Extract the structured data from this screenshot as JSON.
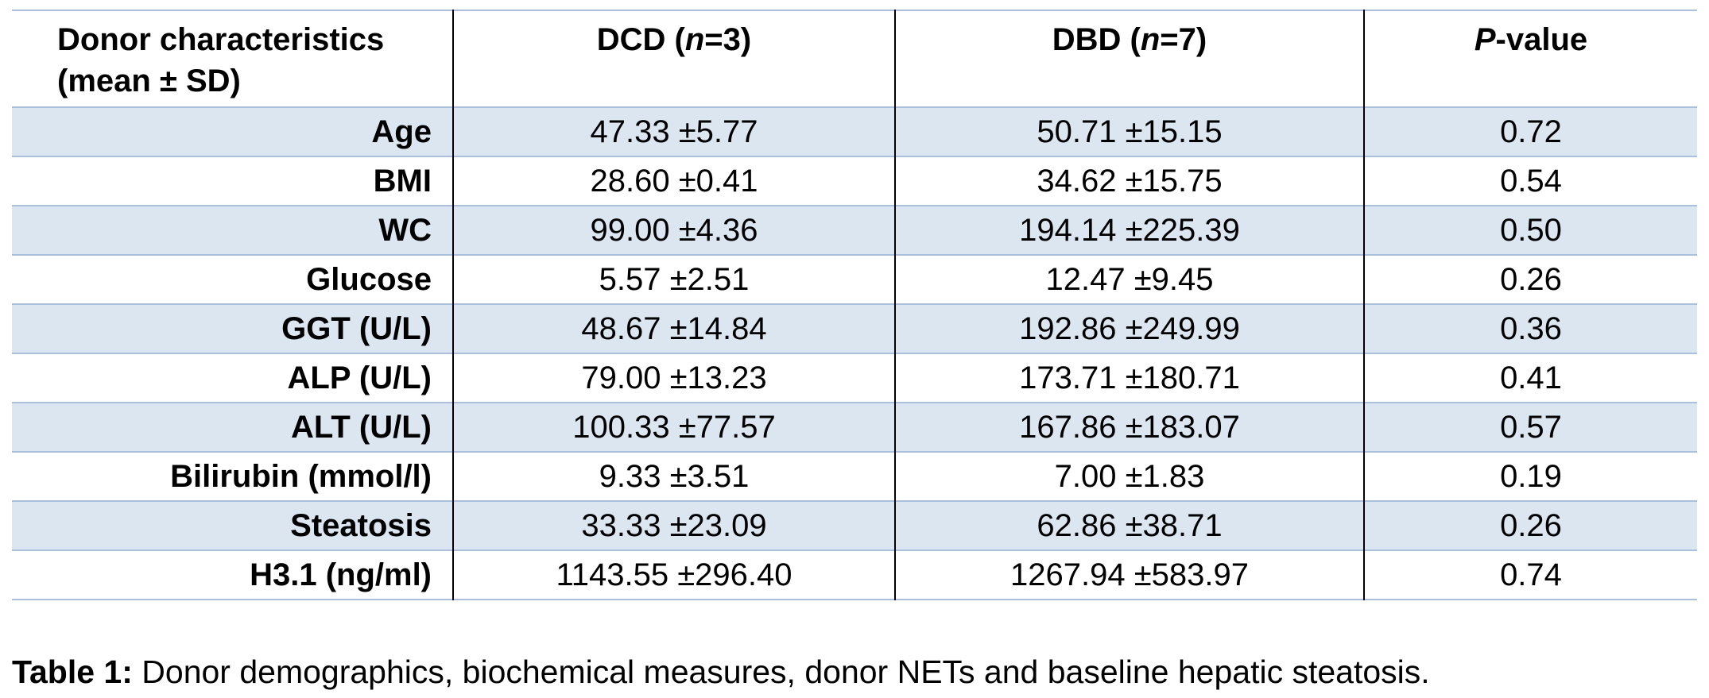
{
  "table": {
    "header": {
      "col0_line1": "Donor characteristics",
      "col0_line2": "(mean ± SD)",
      "col1_prefix": "DCD (",
      "col1_n": "n",
      "col1_suffix": "=3)",
      "col2_prefix": "DBD (",
      "col2_n": "n",
      "col2_suffix": "=7)",
      "col3_italic": "P",
      "col3_suffix": "-value"
    },
    "rows": [
      {
        "label": "Age",
        "dcd": "47.33 ±5.77",
        "dbd": "50.71 ±15.15",
        "p": "0.72"
      },
      {
        "label": "BMI",
        "dcd": "28.60 ±0.41",
        "dbd": "34.62 ±15.75",
        "p": "0.54"
      },
      {
        "label": "WC",
        "dcd": "99.00 ±4.36",
        "dbd": "194.14 ±225.39",
        "p": "0.50"
      },
      {
        "label": "Glucose",
        "dcd": "5.57 ±2.51",
        "dbd": "12.47 ±9.45",
        "p": "0.26"
      },
      {
        "label": "GGT (U/L)",
        "dcd": "48.67 ±14.84",
        "dbd": "192.86 ±249.99",
        "p": "0.36"
      },
      {
        "label": "ALP (U/L)",
        "dcd": "79.00 ±13.23",
        "dbd": "173.71 ±180.71",
        "p": "0.41"
      },
      {
        "label": "ALT (U/L)",
        "dcd": "100.33 ±77.57",
        "dbd": "167.86 ±183.07",
        "p": "0.57"
      },
      {
        "label": "Bilirubin (mmol/l)",
        "dcd": "9.33 ±3.51",
        "dbd": "7.00 ±1.83",
        "p": "0.19"
      },
      {
        "label": "Steatosis",
        "dcd": "33.33 ±23.09",
        "dbd": "62.86 ±38.71",
        "p": "0.26"
      },
      {
        "label": "H3.1 (ng/ml)",
        "dcd": "1143.55  ±296.40",
        "dbd": "1267.94 ±583.97",
        "p": "0.74"
      }
    ]
  },
  "caption": {
    "label": "Table 1:",
    "text": " Donor demographics, biochemical measures, donor NETs and baseline hepatic steatosis."
  },
  "colors": {
    "stripe": "#dce6f1",
    "rule": "#a9bfdd"
  }
}
